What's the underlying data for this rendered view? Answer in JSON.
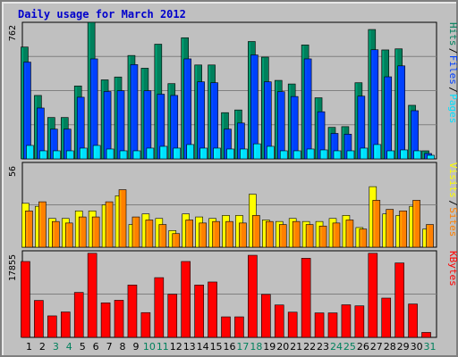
{
  "chart_data": {
    "type": "bar",
    "title": "Daily usage for March 2012",
    "categories": [
      "1",
      "2",
      "3",
      "4",
      "5",
      "6",
      "7",
      "8",
      "9",
      "10",
      "11",
      "12",
      "13",
      "14",
      "15",
      "16",
      "17",
      "18",
      "19",
      "20",
      "21",
      "22",
      "23",
      "24",
      "25",
      "26",
      "27",
      "28",
      "29",
      "30",
      "31"
    ],
    "weekend_days": [
      "3",
      "4",
      "10",
      "11",
      "17",
      "18",
      "24",
      "25",
      "31"
    ],
    "panels": [
      {
        "name": "hits-files-pages",
        "ymax_label": "762",
        "ymax": 762,
        "series": [
          {
            "name": "Hits",
            "color": "#00805c",
            "values": [
              624,
              354,
              231,
              231,
              407,
              762,
              441,
              457,
              577,
              506,
              640,
              420,
              676,
              524,
              524,
              258,
              273,
              655,
              568,
              438,
              418,
              636,
              341,
              176,
              180,
              425,
              722,
              608,
              614,
              299,
              45
            ]
          },
          {
            "name": "Files",
            "color": "#0040ff",
            "values": [
              540,
              284,
              166,
              166,
              344,
              558,
              376,
              380,
              526,
              380,
              361,
              354,
              558,
              430,
              425,
              166,
              200,
              580,
              430,
              375,
              348,
              558,
              263,
              142,
              138,
              350,
              609,
              458,
              519,
              269,
              30
            ]
          },
          {
            "name": "Pages",
            "color": "#00e0ff",
            "values": [
              75,
              45,
              45,
              45,
              60,
              75,
              55,
              45,
              45,
              60,
              70,
              60,
              80,
              60,
              60,
              55,
              55,
              84,
              70,
              45,
              45,
              55,
              50,
              45,
              45,
              60,
              80,
              45,
              50,
              45,
              20
            ]
          }
        ],
        "vertical_labels": [
          "Pages",
          "Files",
          "Hits"
        ]
      },
      {
        "name": "visits-sites",
        "ymax_label": "56",
        "ymax": 56,
        "series": [
          {
            "name": "Visits",
            "color": "#ffff00",
            "values": [
              29,
              27,
              19,
              19,
              24,
              24,
              28,
              34,
              15,
              22,
              19,
              11,
              22,
              20,
              19,
              21,
              21,
              35,
              18,
              17,
              19,
              17,
              17,
              19,
              21,
              13,
              40,
              22,
              21,
              27,
              12
            ]
          },
          {
            "name": "Sites",
            "color": "#ff8000",
            "values": [
              24,
              30,
              17,
              16,
              20,
              20,
              30,
              38,
              20,
              18,
              15,
              9,
              18,
              16,
              17,
              17,
              16,
              21,
              17,
              15,
              17,
              15,
              14,
              16,
              18,
              12,
              31,
              25,
              24,
              31,
              15
            ]
          }
        ],
        "vertical_labels": [
          "Sites",
          "Visits"
        ]
      },
      {
        "name": "kbytes",
        "ymax_label": "17855",
        "ymax": 17855,
        "series": [
          {
            "name": "KBytes",
            "color": "#ff0000",
            "values": [
              15650,
              7620,
              4430,
              5240,
              9270,
              17340,
              7120,
              7650,
              10800,
              5110,
              12320,
              8900,
              15650,
              10800,
              11420,
              4230,
              4230,
              16930,
              8860,
              6680,
              5200,
              16310,
              5050,
              5050,
              6720,
              6500,
              17340,
              8100,
              15350,
              6880,
              1020
            ]
          }
        ],
        "vertical_labels": [
          "KBytes"
        ]
      }
    ]
  }
}
